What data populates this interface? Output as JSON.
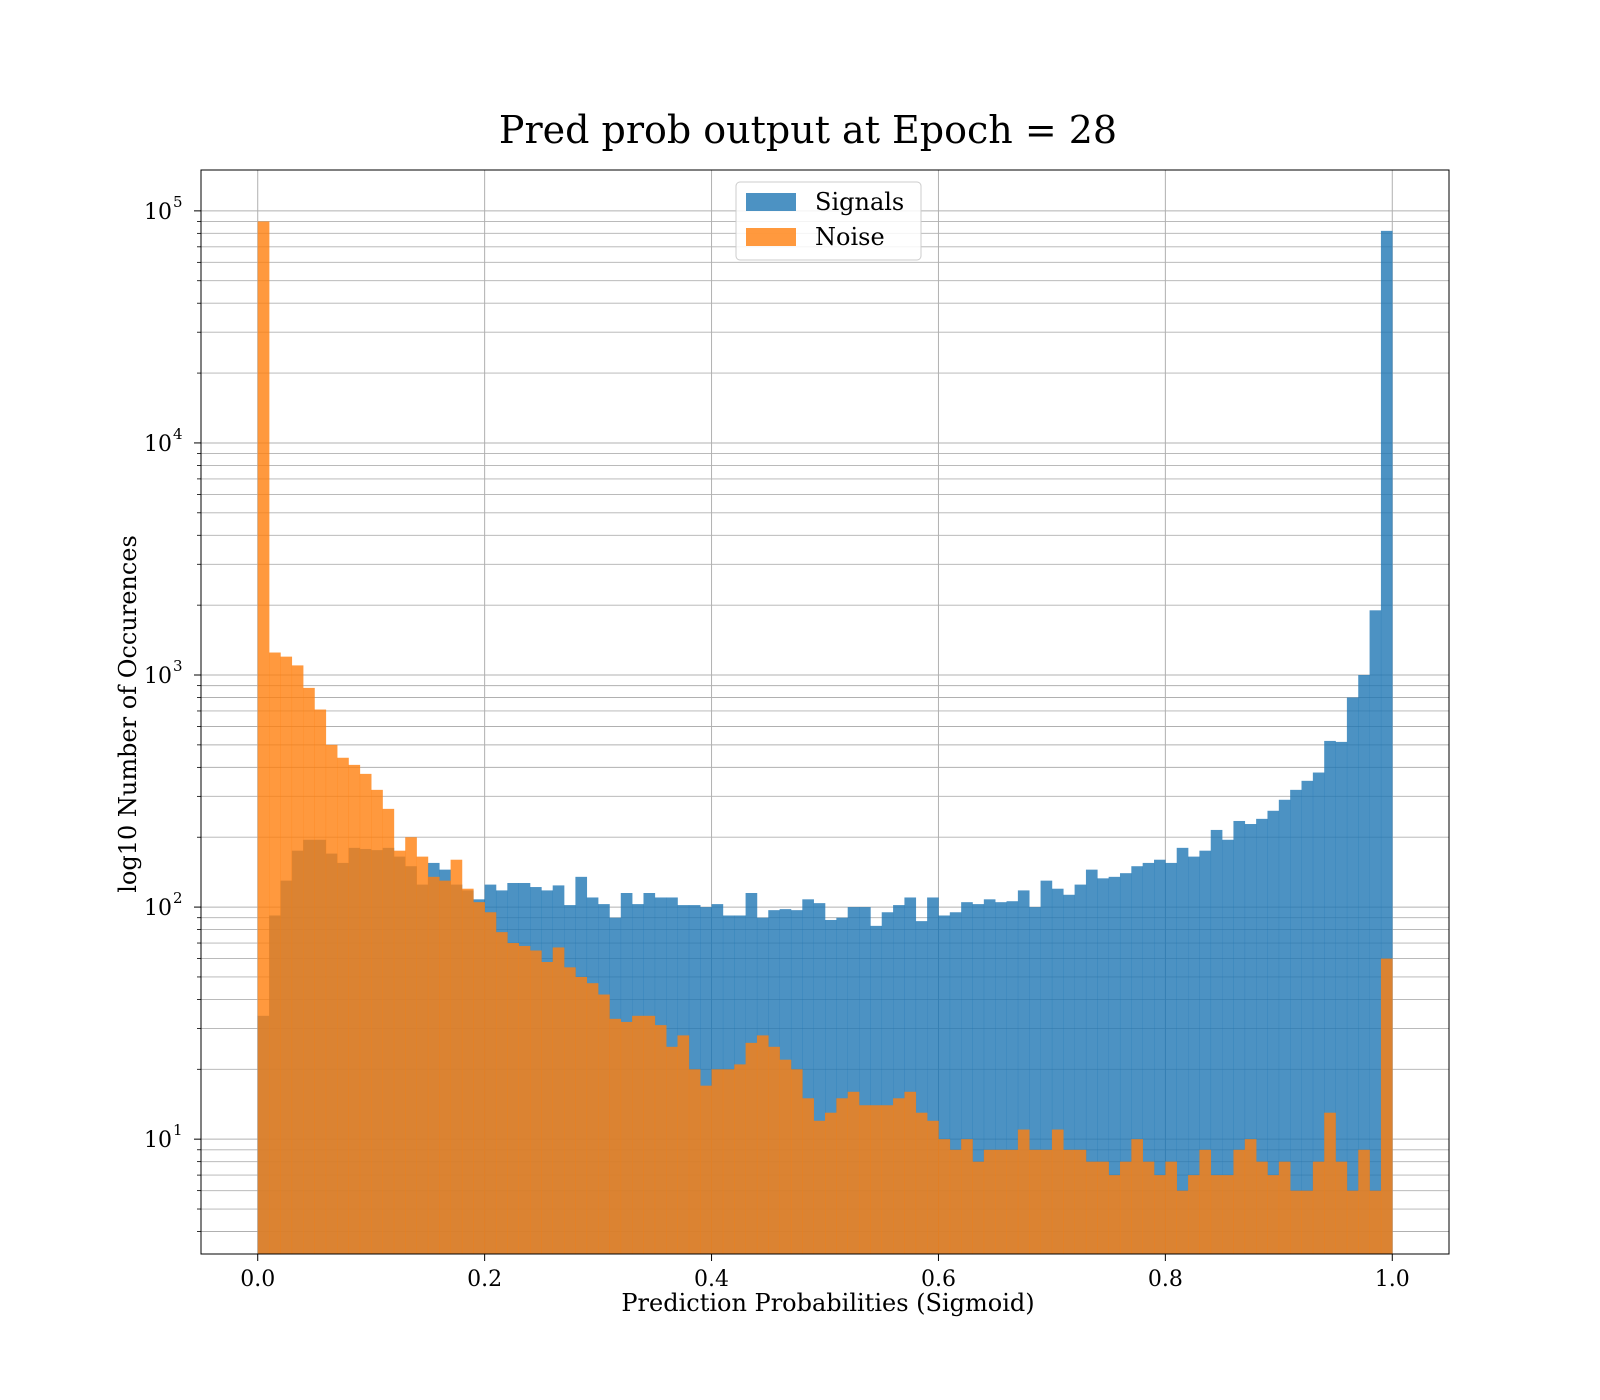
{
  "chart_data": {
    "type": "bar",
    "title": "Pred prob output at Epoch = 28",
    "xlabel": "Prediction Probabilities (Sigmoid)",
    "ylabel": "log10 Number of Occurences",
    "x_scale": "linear",
    "y_scale": "log",
    "xlim": [
      -0.05,
      1.05
    ],
    "ylim": [
      3.2,
      150000
    ],
    "grid": true,
    "legend": "upper-center",
    "bin_width": 0.01,
    "x_start": 0.0,
    "x_ticks": [
      "0.0",
      "0.2",
      "0.4",
      "0.6",
      "0.8",
      "1.0"
    ],
    "y_ticks": [
      {
        "base": "10",
        "exp": "1"
      },
      {
        "base": "10",
        "exp": "2"
      },
      {
        "base": "10",
        "exp": "3"
      },
      {
        "base": "10",
        "exp": "4"
      },
      {
        "base": "10",
        "exp": "5"
      }
    ],
    "series": [
      {
        "name": "Signals",
        "color": "#1f77b4",
        "opacity": 0.8,
        "values": [
          34,
          92,
          130,
          175,
          195,
          195,
          170,
          155,
          180,
          178,
          176,
          180,
          165,
          150,
          125,
          155,
          145,
          125,
          118,
          108,
          125,
          118,
          127,
          127,
          122,
          118,
          124,
          102,
          135,
          110,
          103,
          90,
          115,
          103,
          115,
          110,
          110,
          102,
          102,
          100,
          103,
          92,
          92,
          115,
          90,
          97,
          98,
          97,
          108,
          104,
          88,
          90,
          100,
          100,
          83,
          95,
          102,
          110,
          87,
          110,
          92,
          95,
          105,
          103,
          108,
          105,
          106,
          118,
          100,
          130,
          120,
          113,
          125,
          145,
          133,
          135,
          140,
          150,
          155,
          160,
          155,
          180,
          165,
          175,
          215,
          195,
          235,
          228,
          240,
          260,
          290,
          320,
          350,
          380,
          520,
          515,
          800,
          1000,
          1900,
          82000
        ]
      },
      {
        "name": "Noise",
        "color": "#ff7f0e",
        "opacity": 0.8,
        "values": [
          90000,
          1250,
          1200,
          1100,
          880,
          710,
          500,
          440,
          410,
          375,
          320,
          265,
          175,
          200,
          165,
          135,
          130,
          160,
          120,
          105,
          95,
          78,
          70,
          68,
          65,
          58,
          67,
          55,
          50,
          47,
          42,
          33,
          32,
          34,
          34,
          31,
          25,
          28,
          20,
          17,
          20,
          20,
          21,
          26,
          28,
          25,
          22,
          20,
          15,
          12,
          13,
          15,
          16,
          14,
          14,
          14,
          15,
          16,
          13,
          12,
          10,
          9,
          10,
          8,
          9,
          9,
          9,
          11,
          9,
          9,
          11,
          9,
          9,
          8,
          8,
          7,
          8,
          10,
          8,
          7,
          8,
          6,
          7,
          9,
          7,
          7,
          9,
          10,
          8,
          7,
          8,
          6,
          6,
          8,
          13,
          8,
          6,
          9,
          6,
          60
        ]
      }
    ]
  }
}
